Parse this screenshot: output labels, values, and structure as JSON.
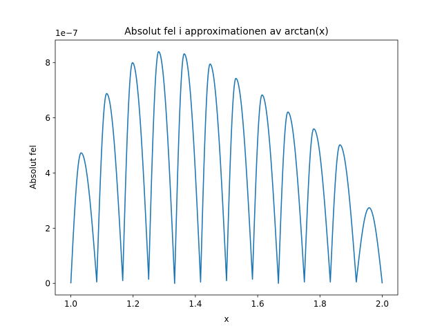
{
  "chart_data": {
    "type": "line",
    "title": "Absolut fel i approximationen av arctan(x)",
    "xlabel": "x",
    "ylabel": "Absolut fel",
    "y_multiplier_label": "1e−7",
    "y_scale_factor": 1e-07,
    "xlim": [
      0.95,
      2.05
    ],
    "ylim": [
      -4.2e-08,
      8.82e-07
    ],
    "xticks": [
      1.0,
      1.2,
      1.4,
      1.6,
      1.8,
      2.0
    ],
    "xtick_labels": [
      "1.0",
      "1.2",
      "1.4",
      "1.6",
      "1.8",
      "2.0"
    ],
    "yticks": [
      0,
      2e-07,
      4e-07,
      6e-07,
      8e-07
    ],
    "ytick_labels": [
      "0",
      "2",
      "4",
      "6",
      "8"
    ],
    "grid": false,
    "line_color": "#1f77b4",
    "series": [
      {
        "zeros": [
          1.0,
          1.0833,
          1.1667,
          1.25,
          1.3333,
          1.4167,
          1.5,
          1.5833,
          1.6667,
          1.75,
          1.8333,
          1.9167,
          2.0
        ],
        "peaks": [
          {
            "x": 1.033,
            "y": 4.73e-07
          },
          {
            "x": 1.115,
            "y": 6.88e-07
          },
          {
            "x": 1.198,
            "y": 8e-07
          },
          {
            "x": 1.282,
            "y": 8.4e-07
          },
          {
            "x": 1.364,
            "y": 8.32e-07
          },
          {
            "x": 1.447,
            "y": 7.95e-07
          },
          {
            "x": 1.53,
            "y": 7.43e-07
          },
          {
            "x": 1.614,
            "y": 6.83e-07
          },
          {
            "x": 1.697,
            "y": 6.21e-07
          },
          {
            "x": 1.78,
            "y": 5.6e-07
          },
          {
            "x": 1.864,
            "y": 5.02e-07
          },
          {
            "x": 1.958,
            "y": 2.74e-07
          }
        ],
        "minima_floor": [
          0.0,
          5e-09,
          1e-08,
          1.5e-08,
          0.0,
          5e-09,
          1e-08,
          1.5e-08,
          0.0,
          5e-09,
          5e-09,
          5e-09,
          0.0
        ]
      }
    ]
  }
}
